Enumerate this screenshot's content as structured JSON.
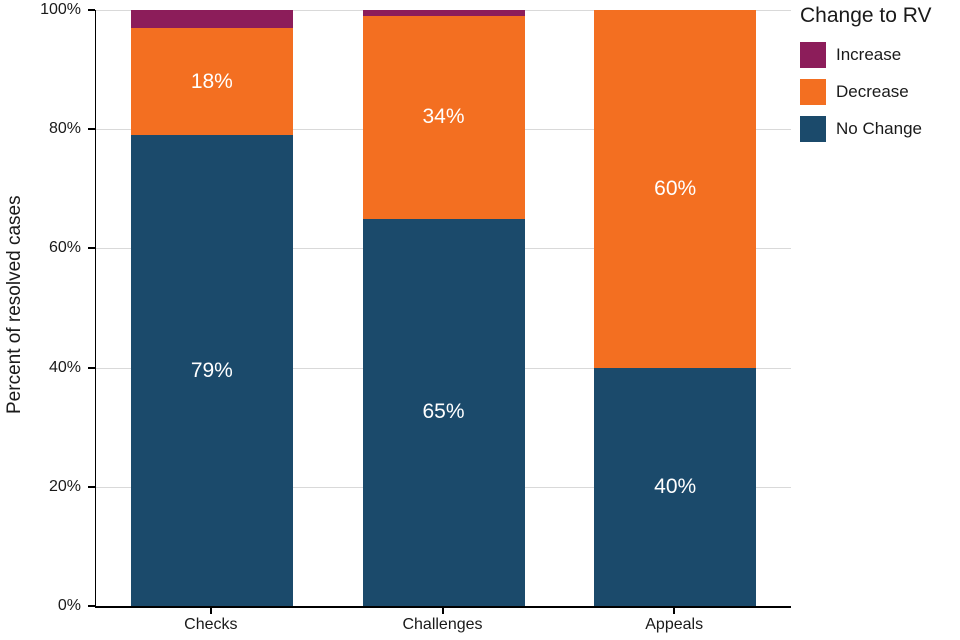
{
  "chart_data": {
    "type": "bar",
    "stacked": true,
    "title": "",
    "xlabel": "",
    "ylabel": "Percent of resolved cases",
    "ylim": [
      0,
      100
    ],
    "grid": true,
    "ytick_values": [
      0,
      20,
      40,
      60,
      80,
      100
    ],
    "ytick_labels": [
      "0%",
      "20%",
      "40%",
      "60%",
      "80%",
      "100%"
    ],
    "categories": [
      "Checks",
      "Challenges",
      "Appeals"
    ],
    "series": [
      {
        "name": "No Change",
        "color": "#1b4a6b",
        "values": [
          79,
          65,
          40
        ],
        "labels": [
          "79%",
          "65%",
          "40%"
        ]
      },
      {
        "name": "Decrease",
        "color": "#f36f21",
        "values": [
          18,
          34,
          60
        ],
        "labels": [
          "18%",
          "34%",
          "60%"
        ]
      },
      {
        "name": "Increase",
        "color": "#8c1d5a",
        "values": [
          3,
          1,
          0
        ],
        "labels": [
          "",
          "",
          ""
        ]
      }
    ],
    "legend": {
      "title": "Change to RV",
      "position": "right",
      "entries": [
        "Increase",
        "Decrease",
        "No Change"
      ]
    }
  }
}
